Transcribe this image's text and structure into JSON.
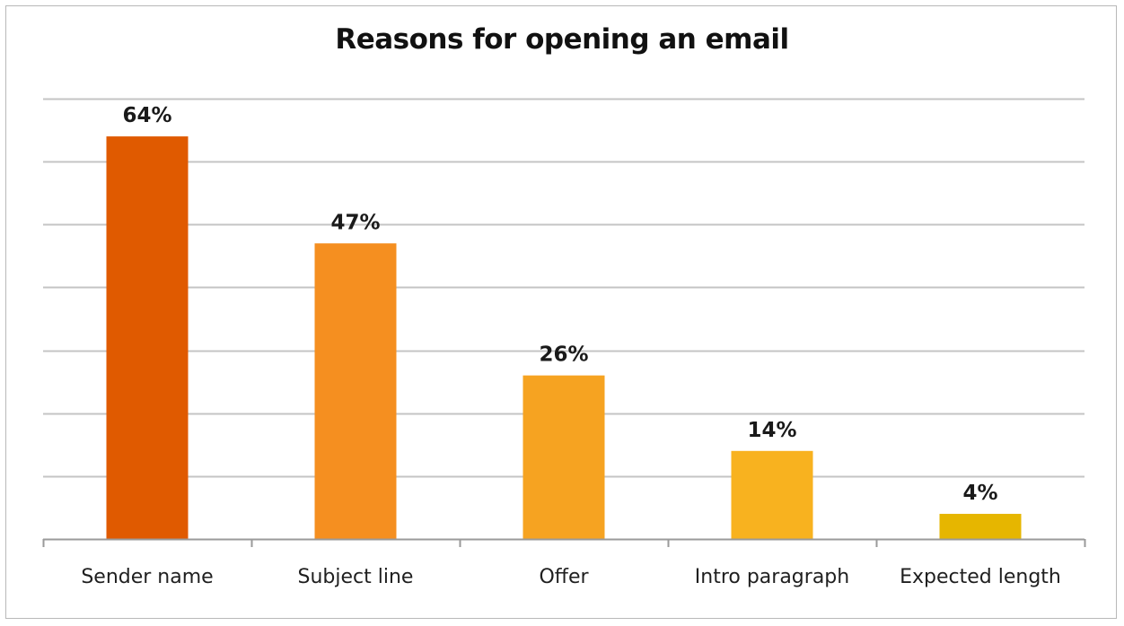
{
  "chart_data": {
    "type": "bar",
    "title": "Reasons for opening an email",
    "xlabel": "",
    "ylabel": "",
    "categories": [
      "Sender name",
      "Subject line",
      "Offer",
      "Intro paragraph",
      "Expected length"
    ],
    "values": [
      64,
      47,
      26,
      14,
      4
    ],
    "data_labels": [
      "64%",
      "47%",
      "26%",
      "14%",
      "4%"
    ],
    "bar_colors": [
      "#e05a00",
      "#f58f20",
      "#f6a321",
      "#f8b21f",
      "#e6b600"
    ],
    "ylim": [
      0,
      70
    ],
    "gridlines": [
      0,
      10,
      20,
      30,
      40,
      50,
      60,
      70
    ],
    "grid": true,
    "show_y_axis": false,
    "legend": "none",
    "colors": {
      "grid": "#c4c4c4",
      "axis": "#9a9a9a"
    }
  }
}
